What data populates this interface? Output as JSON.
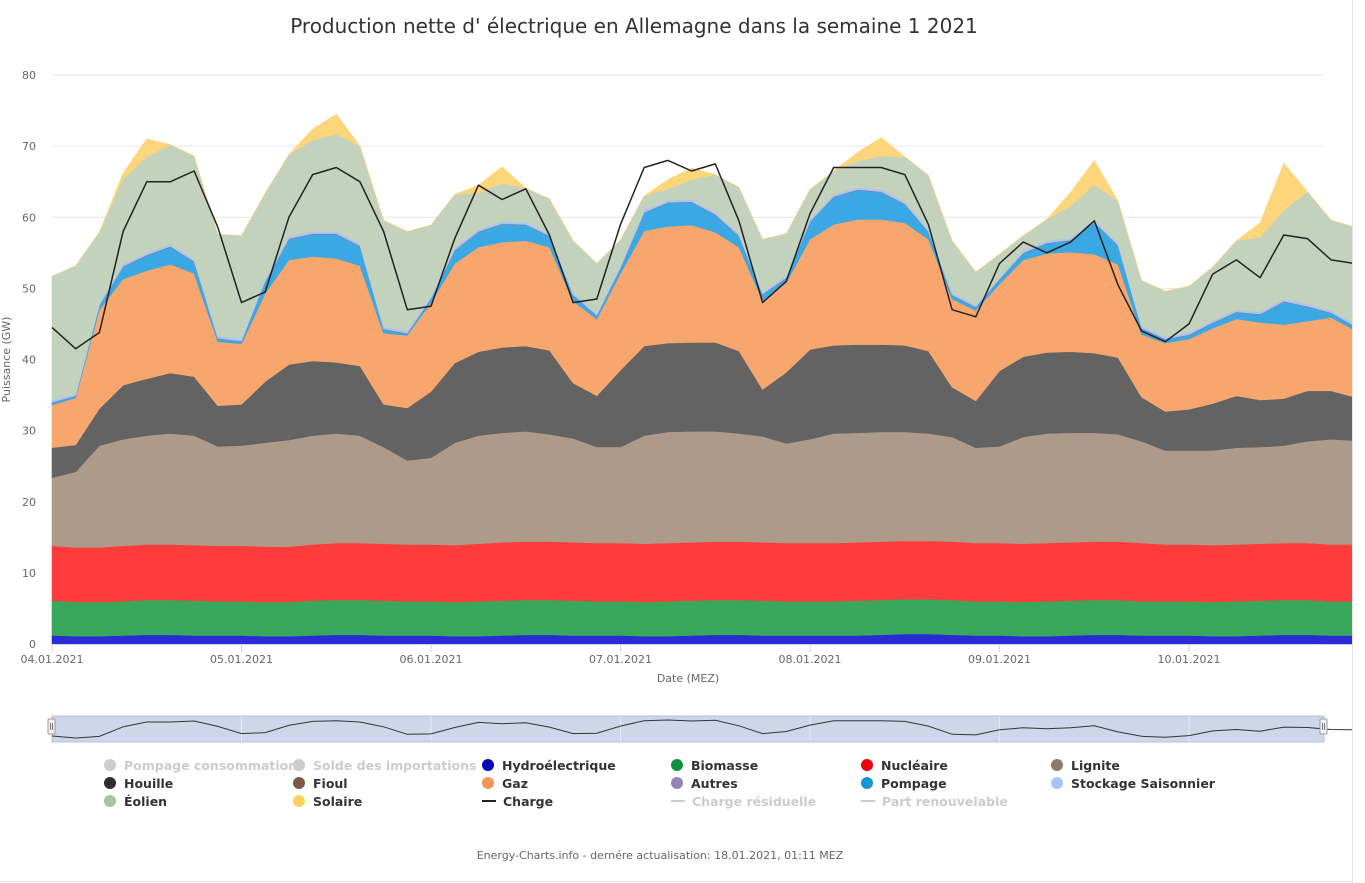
{
  "title": "Production nette d' électrique en Allemagne dans la semaine 1 2021",
  "credits": "Energy-Charts.info - dernére actualisation: 18.01.2021, 01:11 MEZ",
  "chart_data": {
    "type": "area",
    "stacked": true,
    "xlabel": "Date (MEZ)",
    "ylabel": "Puissance (GW)",
    "ylim": [
      0,
      80
    ],
    "yticks": [
      "0",
      "10",
      "20",
      "30",
      "40",
      "50",
      "60",
      "70",
      "80"
    ],
    "xticks": [
      "04.01.2021",
      "05.01.2021",
      "06.01.2021",
      "07.01.2021",
      "08.01.2021",
      "09.01.2021",
      "10.01.2021"
    ],
    "x_start": "04.01.2021 00:00",
    "x_step_hours": 3,
    "grid": true,
    "legend_position": "bottom",
    "series": [
      {
        "name": "Hydroélectrique",
        "color": "#2b2bd6",
        "values": [
          1.2,
          1.1,
          1.1,
          1.2,
          1.3,
          1.3,
          1.2,
          1.2,
          1.2,
          1.1,
          1.1,
          1.2,
          1.3,
          1.3,
          1.2,
          1.2,
          1.2,
          1.1,
          1.1,
          1.2,
          1.3,
          1.3,
          1.2,
          1.2,
          1.2,
          1.1,
          1.1,
          1.2,
          1.3,
          1.3,
          1.2,
          1.2,
          1.2,
          1.2,
          1.2,
          1.3,
          1.4,
          1.4,
          1.3,
          1.2,
          1.2,
          1.1,
          1.1,
          1.2,
          1.3,
          1.3,
          1.2,
          1.2,
          1.2,
          1.1,
          1.1,
          1.2,
          1.3,
          1.3,
          1.2,
          1.2,
          1.2
        ]
      },
      {
        "name": "Biomasse",
        "color": "#3aa85c",
        "values": [
          4.9,
          4.8,
          4.8,
          4.8,
          4.9,
          4.9,
          4.9,
          4.8,
          4.8,
          4.8,
          4.8,
          4.9,
          4.9,
          4.9,
          4.9,
          4.8,
          4.8,
          4.8,
          4.9,
          4.9,
          4.9,
          4.9,
          4.9,
          4.8,
          4.8,
          4.8,
          4.9,
          4.9,
          4.9,
          4.9,
          4.9,
          4.8,
          4.8,
          4.8,
          4.9,
          4.9,
          4.9,
          4.9,
          4.9,
          4.8,
          4.8,
          4.8,
          4.9,
          4.9,
          4.9,
          4.9,
          4.8,
          4.8,
          4.8,
          4.8,
          4.9,
          4.9,
          4.9,
          4.9,
          4.8,
          4.8,
          4.8
        ]
      },
      {
        "name": "Nucléaire",
        "color": "#ff3c3c",
        "values": [
          7.7,
          7.7,
          7.7,
          7.8,
          7.8,
          7.8,
          7.8,
          7.8,
          7.8,
          7.8,
          7.8,
          7.9,
          8.0,
          8.0,
          8.0,
          8.0,
          8.0,
          8.0,
          8.1,
          8.2,
          8.2,
          8.2,
          8.2,
          8.2,
          8.2,
          8.2,
          8.2,
          8.2,
          8.2,
          8.2,
          8.2,
          8.2,
          8.2,
          8.2,
          8.2,
          8.2,
          8.2,
          8.2,
          8.2,
          8.2,
          8.2,
          8.2,
          8.2,
          8.2,
          8.2,
          8.2,
          8.2,
          8.0,
          8.0,
          8.0,
          8.0,
          8.0,
          8.0,
          8.0,
          8.0,
          8.0,
          8.0
        ]
      },
      {
        "name": "Lignite",
        "color": "#ae9a89",
        "values": [
          9.6,
          10.6,
          14.3,
          15.0,
          15.3,
          15.6,
          15.4,
          14.0,
          14.1,
          14.6,
          15.0,
          15.3,
          15.4,
          15.1,
          13.6,
          11.8,
          12.2,
          14.4,
          15.2,
          15.4,
          15.5,
          15.1,
          14.6,
          13.5,
          13.5,
          15.2,
          15.6,
          15.6,
          15.5,
          15.2,
          14.9,
          14.0,
          14.6,
          15.4,
          15.4,
          15.4,
          15.3,
          15.1,
          14.7,
          13.4,
          13.6,
          15.0,
          15.4,
          15.4,
          15.3,
          15.1,
          14.3,
          13.2,
          13.2,
          13.3,
          13.6,
          13.6,
          13.7,
          14.3,
          14.8,
          14.6,
          13.9
        ]
      },
      {
        "name": "Houille",
        "color": "#636363",
        "values": [
          4.2,
          3.8,
          5.2,
          7.6,
          8.0,
          8.5,
          8.3,
          5.7,
          5.8,
          8.6,
          10.6,
          10.5,
          10.0,
          9.8,
          6.0,
          7.4,
          9.3,
          11.2,
          11.8,
          12.0,
          12.0,
          11.8,
          7.8,
          7.2,
          10.8,
          12.6,
          12.5,
          12.5,
          12.5,
          11.6,
          6.6,
          10.0,
          12.6,
          12.4,
          12.4,
          12.3,
          12.2,
          11.6,
          7.0,
          6.6,
          10.6,
          11.3,
          11.4,
          11.4,
          11.2,
          10.8,
          6.2,
          5.5,
          5.8,
          6.6,
          7.3,
          6.6,
          6.6,
          7.1,
          6.8,
          6.1,
          4.8
        ]
      },
      {
        "name": "Gaz",
        "color": "#f7a76e",
        "values": [
          6.0,
          6.6,
          13.9,
          14.9,
          15.2,
          15.3,
          14.5,
          9.0,
          8.5,
          12.4,
          14.7,
          14.7,
          14.6,
          14.1,
          10.0,
          10.2,
          12.5,
          14.0,
          14.7,
          14.8,
          14.8,
          14.5,
          11.5,
          10.8,
          13.6,
          16.2,
          16.4,
          16.5,
          15.5,
          14.6,
          12.5,
          12.6,
          15.5,
          17.0,
          17.6,
          17.6,
          17.2,
          15.7,
          12.4,
          12.7,
          12.2,
          13.6,
          13.9,
          14.0,
          13.9,
          13.1,
          8.8,
          9.6,
          9.9,
          10.6,
          10.8,
          10.9,
          10.4,
          9.8,
          10.3,
          9.4,
          8.3
        ]
      },
      {
        "name": "Pompage",
        "color": "#39a8e3",
        "values": [
          0.3,
          0.2,
          0.5,
          1.7,
          2.1,
          2.4,
          1.6,
          0.4,
          0.3,
          1.6,
          2.9,
          3.1,
          3.4,
          2.7,
          0.5,
          0.2,
          0.5,
          1.8,
          2.1,
          2.5,
          2.2,
          1.5,
          0.8,
          0.4,
          0.7,
          2.5,
          3.3,
          3.2,
          2.4,
          1.5,
          0.8,
          0.6,
          2.4,
          3.8,
          4.1,
          3.8,
          2.6,
          1.0,
          0.5,
          0.4,
          0.6,
          0.9,
          1.4,
          1.6,
          4.4,
          2.6,
          0.8,
          0.5,
          0.5,
          0.7,
          0.9,
          1.1,
          3.2,
          2.0,
          0.6,
          0.5,
          0.4
        ]
      },
      {
        "name": "Autres",
        "color": "#8c7ab0",
        "values": [
          0.1,
          0.1,
          0.1,
          0.1,
          0.1,
          0.1,
          0.1,
          0.1,
          0.1,
          0.1,
          0.1,
          0.1,
          0.1,
          0.1,
          0.1,
          0.1,
          0.1,
          0.1,
          0.1,
          0.1,
          0.1,
          0.1,
          0.1,
          0.1,
          0.1,
          0.1,
          0.1,
          0.1,
          0.1,
          0.1,
          0.1,
          0.1,
          0.1,
          0.1,
          0.1,
          0.1,
          0.1,
          0.1,
          0.1,
          0.1,
          0.1,
          0.1,
          0.1,
          0.1,
          0.1,
          0.1,
          0.1,
          0.1,
          0.1,
          0.1,
          0.1,
          0.1,
          0.1,
          0.1,
          0.1,
          0.1,
          0.1
        ]
      },
      {
        "name": "Stockage Saisonnier",
        "color": "#a8c6f0",
        "values": [
          0.3,
          0.3,
          0.3,
          0.3,
          0.3,
          0.3,
          0.3,
          0.3,
          0.3,
          0.3,
          0.3,
          0.3,
          0.3,
          0.3,
          0.3,
          0.3,
          0.3,
          0.3,
          0.3,
          0.3,
          0.3,
          0.3,
          0.3,
          0.3,
          0.3,
          0.3,
          0.3,
          0.3,
          0.3,
          0.3,
          0.3,
          0.3,
          0.3,
          0.3,
          0.3,
          0.3,
          0.3,
          0.3,
          0.3,
          0.3,
          0.3,
          0.3,
          0.3,
          0.3,
          0.3,
          0.3,
          0.3,
          0.3,
          0.3,
          0.3,
          0.3,
          0.3,
          0.3,
          0.3,
          0.3,
          0.3,
          0.3
        ]
      },
      {
        "name": "Éolien",
        "color": "#c3d2bc",
        "values": [
          17.4,
          18.0,
          10.0,
          12.0,
          13.5,
          14.0,
          14.5,
          14.3,
          14.5,
          12.1,
          11.5,
          12.9,
          13.7,
          13.7,
          15.0,
          14.0,
          10.0,
          7.5,
          5.1,
          5.4,
          4.8,
          4.9,
          7.3,
          7.0,
          3.6,
          2.0,
          1.6,
          2.8,
          5.3,
          6.5,
          7.4,
          5.9,
          4.2,
          3.3,
          3.7,
          4.7,
          6.3,
          7.6,
          7.3,
          4.6,
          3.2,
          2.1,
          3.0,
          4.5,
          5.0,
          5.9,
          6.4,
          6.4,
          6.5,
          7.5,
          9.7,
          10.5,
          12.5,
          15.8,
          12.7,
          13.6,
          15.3
        ]
      },
      {
        "name": "Solaire",
        "color": "#fdd57a",
        "values": [
          0,
          0,
          0,
          0.8,
          2.5,
          0,
          0,
          0,
          0,
          0,
          0,
          1.5,
          2.8,
          0,
          0,
          0,
          0,
          0,
          1.1,
          2.3,
          0,
          0,
          0,
          0,
          0,
          0,
          1.3,
          1.6,
          0,
          0,
          0,
          0,
          0,
          0,
          1.2,
          2.6,
          0,
          0,
          0,
          0,
          0,
          0,
          0,
          1.9,
          3.4,
          0,
          0,
          0,
          0,
          0,
          0,
          2.0,
          6.6,
          0,
          0,
          0,
          0
        ]
      }
    ],
    "line_series": [
      {
        "name": "Charge",
        "color": "#222222",
        "values": [
          44.5,
          41.5,
          43.8,
          58.0,
          65.0,
          65.0,
          66.5,
          58.6,
          48.0,
          49.5,
          60.0,
          66.0,
          67.0,
          65.0,
          58.0,
          47.0,
          47.5,
          57.0,
          64.5,
          62.5,
          64.0,
          57.5,
          48.0,
          48.5,
          59.0,
          67.0,
          68.0,
          66.5,
          67.5,
          59.5,
          48.0,
          51.0,
          60.5,
          67.0,
          67.0,
          67.0,
          66.0,
          59.0,
          47.0,
          46.0,
          53.5,
          56.5,
          55.0,
          56.5,
          59.5,
          50.5,
          44.0,
          42.5,
          45.0,
          52.0,
          54.0,
          51.5,
          57.5,
          57.0,
          54.0,
          53.5,
          50.5
        ]
      }
    ]
  },
  "legend": [
    {
      "name": "Pompage consommation",
      "color": "#cccccc",
      "visible": false,
      "symbol": "circle"
    },
    {
      "name": "Solde des importations",
      "color": "#cccccc",
      "visible": false,
      "symbol": "circle"
    },
    {
      "name": "Hydroélectrique",
      "color": "#0a0ab4",
      "visible": true,
      "symbol": "circle"
    },
    {
      "name": "Biomasse",
      "color": "#109341",
      "visible": true,
      "symbol": "circle"
    },
    {
      "name": "Nucléaire",
      "color": "#e8020a",
      "visible": true,
      "symbol": "circle"
    },
    {
      "name": "Lignite",
      "color": "#8d7a68",
      "visible": true,
      "symbol": "circle"
    },
    {
      "name": "Houille",
      "color": "#2e2e2e",
      "visible": true,
      "symbol": "circle"
    },
    {
      "name": "Fioul",
      "color": "#7a5b45",
      "visible": true,
      "symbol": "circle"
    },
    {
      "name": "Gaz",
      "color": "#f59558",
      "visible": true,
      "symbol": "circle"
    },
    {
      "name": "Autres",
      "color": "#9682b8",
      "visible": true,
      "symbol": "circle"
    },
    {
      "name": "Pompage",
      "color": "#1496d6",
      "visible": true,
      "symbol": "circle"
    },
    {
      "name": "Stockage Saisonnier",
      "color": "#a9c3f2",
      "visible": true,
      "symbol": "circle"
    },
    {
      "name": "Éolien",
      "color": "#a6c49e",
      "visible": true,
      "symbol": "circle"
    },
    {
      "name": "Solaire",
      "color": "#fbd160",
      "visible": true,
      "symbol": "circle"
    },
    {
      "name": "Charge",
      "color": "#222222",
      "visible": true,
      "symbol": "line"
    },
    {
      "name": "Charge résiduelle",
      "color": "#cccccc",
      "visible": false,
      "symbol": "line"
    },
    {
      "name": "Part renouvelable",
      "color": "#cccccc",
      "visible": false,
      "symbol": "line"
    }
  ]
}
